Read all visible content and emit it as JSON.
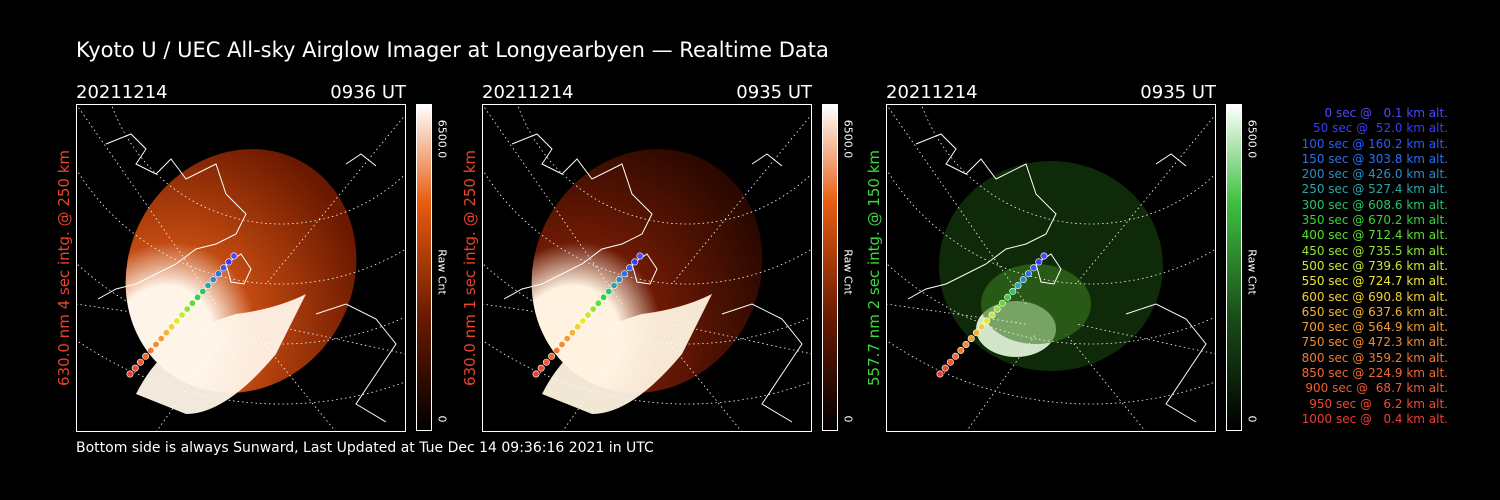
{
  "title": "Kyoto U / UEC All-sky Airglow Imager at Longyearbyen — Realtime Data",
  "footer": "Bottom side is always Sunward, Last Updated at Tue Dec 14 09:36:16 2021 in UTC",
  "panels": [
    {
      "date": "20211214",
      "time": "0936 UT",
      "ylabel": "630.0 nm 4 sec intg. @ 250 km",
      "ylabel_color": "#e8442a",
      "cbar_max": "6500.0",
      "cbar_unit": "Raw Cnt",
      "cbar_min": "0",
      "cbar_color": "#ff6a00",
      "intensity": "high"
    },
    {
      "date": "20211214",
      "time": "0935 UT",
      "ylabel": "630.0 nm 1 sec intg. @ 250 km",
      "ylabel_color": "#e8442a",
      "cbar_max": "6500.0",
      "cbar_unit": "Raw Cnt",
      "cbar_min": "0",
      "cbar_color": "#ff6a00",
      "intensity": "medium"
    },
    {
      "date": "20211214",
      "time": "0935 UT",
      "ylabel": "557.7 nm 2 sec intg. @ 150 km",
      "ylabel_color": "#3fd83f",
      "cbar_max": "6500.0",
      "cbar_unit": "Raw Cnt",
      "cbar_min": "0",
      "cbar_color": "#3fbf3f",
      "intensity": "green"
    }
  ],
  "legend": [
    {
      "text": "0 sec @   0.1 km alt.",
      "color": "#4a4aff"
    },
    {
      "text": "50 sec @  52.0 km alt.",
      "color": "#3b3bff"
    },
    {
      "text": "100 sec @ 160.2 km alt.",
      "color": "#2a5cff"
    },
    {
      "text": "150 sec @ 303.8 km alt.",
      "color": "#2a72ee"
    },
    {
      "text": "200 sec @ 426.0 km alt.",
      "color": "#2b8ccc"
    },
    {
      "text": "250 sec @ 527.4 km alt.",
      "color": "#2aa8a8"
    },
    {
      "text": "300 sec @ 608.6 km alt.",
      "color": "#2ac46a"
    },
    {
      "text": "350 sec @ 670.2 km alt.",
      "color": "#33d633"
    },
    {
      "text": "400 sec @ 712.4 km alt.",
      "color": "#5cdf33"
    },
    {
      "text": "450 sec @ 735.5 km alt.",
      "color": "#94e433"
    },
    {
      "text": "500 sec @ 739.6 km alt.",
      "color": "#c4ea33"
    },
    {
      "text": "550 sec @ 724.7 km alt.",
      "color": "#e8e833"
    },
    {
      "text": "600 sec @ 690.8 km alt.",
      "color": "#f2d033"
    },
    {
      "text": "650 sec @ 637.6 km alt.",
      "color": "#f2b433"
    },
    {
      "text": "700 sec @ 564.9 km alt.",
      "color": "#f29c33"
    },
    {
      "text": "750 sec @ 472.3 km alt.",
      "color": "#f28a33"
    },
    {
      "text": "800 sec @ 359.2 km alt.",
      "color": "#f27a33"
    },
    {
      "text": "850 sec @ 224.9 km alt.",
      "color": "#f26a33"
    },
    {
      "text": "900 sec @  68.7 km alt.",
      "color": "#f25a33"
    },
    {
      "text": "950 sec @   6.2 km alt.",
      "color": "#f24a33"
    },
    {
      "text": "1000 sec @   0.4 km alt.",
      "color": "#f23b33"
    }
  ]
}
